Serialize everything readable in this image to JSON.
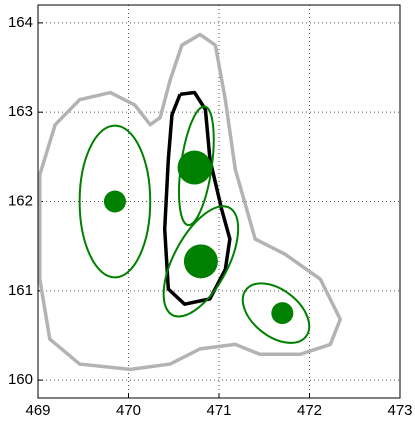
{
  "chart_data": {
    "type": "scatter",
    "xlim": [
      469,
      473
    ],
    "ylim": [
      159.8,
      164.2
    ],
    "xticks": [
      469,
      470,
      471,
      472,
      473
    ],
    "yticks": [
      160,
      161,
      162,
      163,
      164
    ],
    "grid": true,
    "contours": [
      {
        "color": "#b3b3b3",
        "x": [
          469.02,
          469.19,
          469.46,
          469.8,
          470.07,
          470.24,
          470.35,
          470.46,
          470.59,
          470.79,
          470.96,
          471.07,
          471.18,
          471.4,
          471.73,
          472.12,
          472.34,
          472.23,
          471.9,
          471.45,
          471.18,
          470.79,
          470.46,
          470.02,
          469.46,
          469.13,
          469.02,
          469.02
        ],
        "y": [
          162.3,
          162.86,
          163.14,
          163.22,
          163.08,
          162.86,
          162.94,
          163.36,
          163.75,
          163.87,
          163.75,
          163.14,
          162.36,
          161.58,
          161.41,
          161.13,
          160.68,
          160.4,
          160.29,
          160.29,
          160.4,
          160.35,
          160.18,
          160.12,
          160.18,
          160.46,
          161.13,
          162.3
        ]
      },
      {
        "color": "#000000",
        "x": [
          470.57,
          470.73,
          470.85,
          470.9,
          471.03,
          471.12,
          471.07,
          470.9,
          470.62,
          470.44,
          470.4,
          470.44,
          470.48,
          470.57
        ],
        "y": [
          163.2,
          163.22,
          163.03,
          162.47,
          161.91,
          161.58,
          161.24,
          160.91,
          160.85,
          161.02,
          161.69,
          162.47,
          162.97,
          163.2
        ]
      }
    ],
    "ellipses": {
      "color": "#008000",
      "cx": [
        469.85,
        470.75,
        470.8,
        471.63
      ],
      "cy": [
        162.0,
        162.4,
        161.33,
        160.75
      ],
      "rx": [
        0.39,
        0.17,
        0.3,
        0.42
      ],
      "ry": [
        0.85,
        0.67,
        0.68,
        0.26
      ],
      "angle": [
        0,
        8,
        28,
        38
      ]
    },
    "points": {
      "color": "#008000",
      "x": [
        469.85,
        470.73,
        470.8,
        471.7
      ],
      "y": [
        162.0,
        162.38,
        161.33,
        160.75
      ],
      "sizes": [
        11,
        17,
        17,
        11
      ]
    }
  }
}
